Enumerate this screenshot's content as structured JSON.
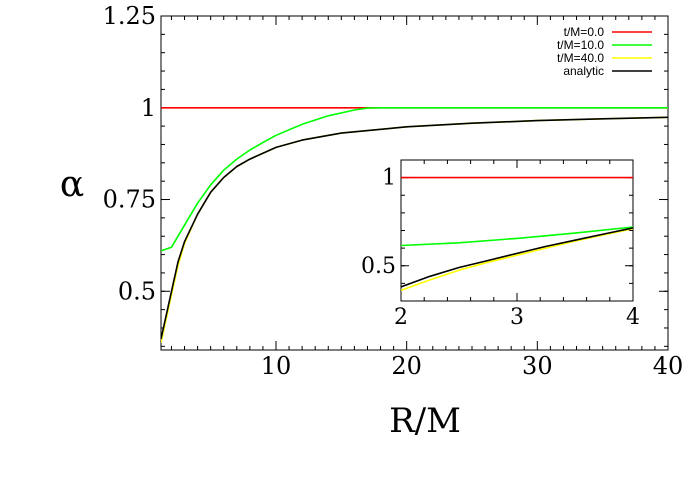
{
  "chart_data": {
    "type": "line",
    "xlabel": "R/M",
    "ylabel": "α",
    "xlim": [
      1.2,
      40
    ],
    "ylim": [
      0.34,
      1.25
    ],
    "xticks": [
      10,
      20,
      30,
      40
    ],
    "yticks": [
      0.5,
      0.75,
      1,
      1.25
    ],
    "xtick_labels": [
      "10",
      "20",
      "30",
      "40"
    ],
    "ytick_labels": [
      "0.5",
      "0.75",
      "1",
      "1.25"
    ],
    "grid": false,
    "legend_position": "top-right",
    "series": [
      {
        "name": "t/M=0.0",
        "color": "#ff0000",
        "x": [
          1.2,
          40
        ],
        "y": [
          1.0,
          1.0
        ]
      },
      {
        "name": "t/M=10.0",
        "color": "#00ff00",
        "x": [
          1.2,
          2,
          3,
          4,
          5,
          6,
          7,
          8,
          9,
          10,
          12,
          14,
          16,
          17,
          18,
          20,
          25,
          30,
          35,
          40
        ],
        "y": [
          0.61,
          0.62,
          0.68,
          0.74,
          0.79,
          0.83,
          0.86,
          0.885,
          0.905,
          0.925,
          0.955,
          0.978,
          0.994,
          0.999,
          1.0,
          1.0,
          1.0,
          1.0,
          1.0,
          1.0
        ]
      },
      {
        "name": "t/M=40.0",
        "color": "#ffff00",
        "x": [
          1.2,
          2,
          2.5,
          3,
          4,
          5,
          6,
          7,
          8,
          10,
          12,
          15,
          20,
          25,
          30,
          35,
          40
        ],
        "y": [
          0.36,
          0.49,
          0.57,
          0.63,
          0.71,
          0.77,
          0.81,
          0.84,
          0.86,
          0.892,
          0.912,
          0.931,
          0.948,
          0.958,
          0.965,
          0.97,
          0.974
        ]
      },
      {
        "name": "analytic",
        "color": "#000000",
        "x": [
          1.2,
          2,
          2.5,
          3,
          4,
          5,
          6,
          7,
          8,
          10,
          12,
          15,
          20,
          25,
          30,
          35,
          40
        ],
        "y": [
          0.37,
          0.5,
          0.58,
          0.635,
          0.71,
          0.77,
          0.81,
          0.84,
          0.86,
          0.892,
          0.912,
          0.931,
          0.948,
          0.958,
          0.965,
          0.97,
          0.974
        ]
      }
    ],
    "inset": {
      "xlim": [
        2,
        4
      ],
      "ylim": [
        0.3,
        1.1
      ],
      "xticks": [
        2,
        3,
        4
      ],
      "yticks": [
        0.5,
        1
      ],
      "xtick_labels": [
        "2",
        "3",
        "4"
      ],
      "ytick_labels": [
        "0.5",
        "1"
      ],
      "series": [
        {
          "name": "t/M=0.0",
          "color": "#ff0000",
          "x": [
            2,
            4
          ],
          "y": [
            1.0,
            1.0
          ]
        },
        {
          "name": "t/M=10.0",
          "color": "#00ff00",
          "x": [
            2,
            2.5,
            3,
            3.5,
            4
          ],
          "y": [
            0.615,
            0.63,
            0.655,
            0.685,
            0.72
          ]
        },
        {
          "name": "t/M=40.0",
          "color": "#ffff00",
          "x": [
            2,
            2.25,
            2.5,
            2.75,
            3,
            3.25,
            3.5,
            3.75,
            4
          ],
          "y": [
            0.36,
            0.42,
            0.475,
            0.52,
            0.56,
            0.6,
            0.64,
            0.675,
            0.71
          ]
        },
        {
          "name": "analytic",
          "color": "#000000",
          "x": [
            2,
            2.25,
            2.5,
            2.75,
            3,
            3.25,
            3.5,
            3.75,
            4
          ],
          "y": [
            0.38,
            0.44,
            0.49,
            0.53,
            0.57,
            0.61,
            0.645,
            0.68,
            0.715
          ]
        }
      ]
    }
  }
}
